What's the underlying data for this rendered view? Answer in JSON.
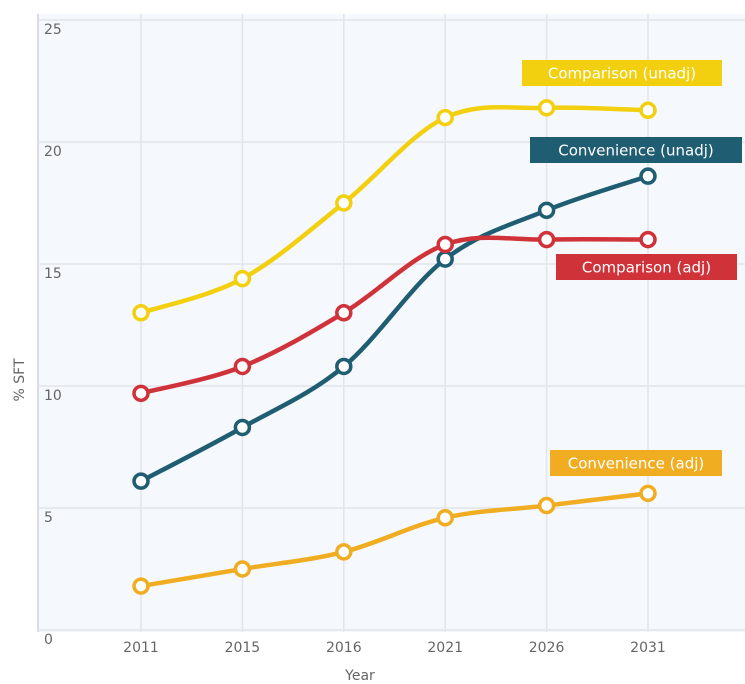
{
  "chart_data": {
    "type": "line",
    "xlabel": "Year",
    "ylabel": "% SFT",
    "categories": [
      "2011",
      "2015",
      "2016",
      "2021",
      "2026",
      "2031"
    ],
    "ylim": [
      0,
      25
    ],
    "yticks": [
      0,
      5,
      10,
      15,
      20,
      25
    ],
    "grid": true,
    "series": [
      {
        "name": "Comparison (unadj)",
        "color": "#f3d00f",
        "values": [
          13.0,
          14.4,
          17.5,
          21.0,
          21.4,
          21.3
        ]
      },
      {
        "name": "Convenience (unadj)",
        "color": "#1f5d72",
        "values": [
          6.1,
          8.3,
          10.8,
          15.2,
          17.2,
          18.6
        ]
      },
      {
        "name": "Comparison (adj)",
        "color": "#cf3339",
        "values": [
          9.7,
          10.8,
          13.0,
          15.8,
          16.0,
          16.0
        ]
      },
      {
        "name": "Convenience (adj)",
        "color": "#f0ad22",
        "values": [
          1.8,
          2.5,
          3.2,
          4.6,
          5.1,
          5.6
        ]
      }
    ]
  }
}
